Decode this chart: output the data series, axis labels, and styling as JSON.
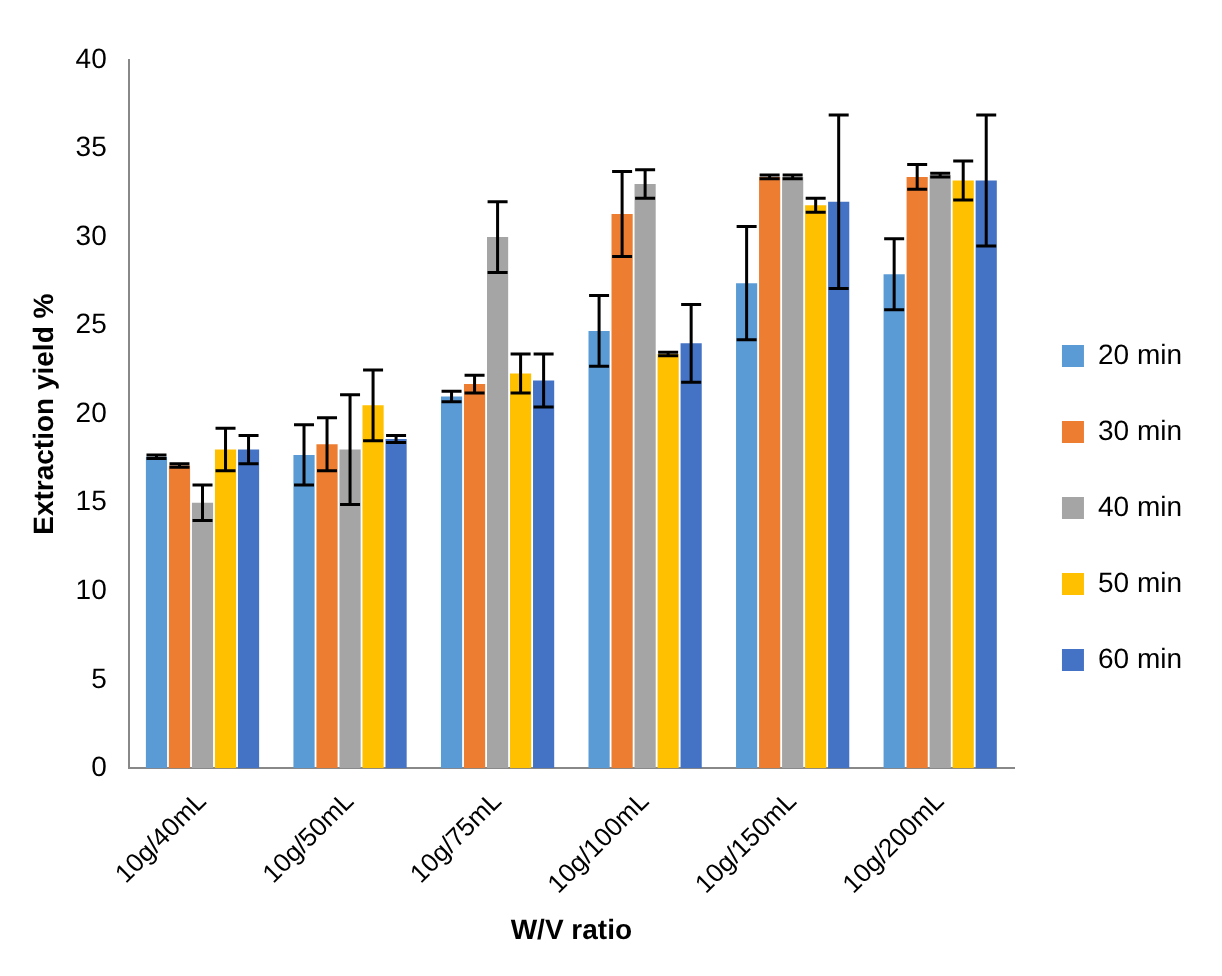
{
  "chart_data": {
    "type": "bar",
    "xlabel": "W/V ratio",
    "ylabel": "Extraction yield %",
    "categories": [
      "10g/40mL",
      "10g/50mL",
      "10g/75mL",
      "10g/100mL",
      "10g/150mL",
      "10g/200mL"
    ],
    "series": [
      {
        "name": "20 min",
        "color": "#5b9bd5",
        "values": [
          17.6,
          17.7,
          21.0,
          24.7,
          27.4,
          27.9
        ],
        "errors": [
          0.1,
          1.7,
          0.3,
          2,
          3.2,
          2
        ]
      },
      {
        "name": "30 min",
        "color": "#ed7d31",
        "values": [
          17.1,
          18.3,
          21.7,
          31.3,
          33.4,
          33.4
        ],
        "errors": [
          0.1,
          1.5,
          0.5,
          2.4,
          0.1,
          0.7
        ]
      },
      {
        "name": "40 min",
        "color": "#a5a5a5",
        "values": [
          15.0,
          18.0,
          30.0,
          33.0,
          33.4,
          33.5
        ],
        "errors": [
          1,
          3.1,
          2,
          0.8,
          0.1,
          0.1
        ]
      },
      {
        "name": "50 min",
        "color": "#ffc000",
        "values": [
          18.0,
          20.5,
          22.3,
          23.4,
          31.8,
          33.2
        ],
        "errors": [
          1.2,
          2,
          1.1,
          0.1,
          0.4,
          1.1
        ]
      },
      {
        "name": "60 min",
        "color": "#4472c4",
        "values": [
          18.0,
          18.6,
          21.9,
          24.0,
          32.0,
          33.2
        ],
        "errors": [
          0.8,
          0.2,
          1.5,
          2.2,
          4.9,
          3.7
        ]
      }
    ],
    "ylim": [
      0,
      40
    ],
    "yticks": [
      0,
      5,
      10,
      15,
      20,
      25,
      30,
      35,
      40
    ],
    "grid": false,
    "legend": "right"
  }
}
